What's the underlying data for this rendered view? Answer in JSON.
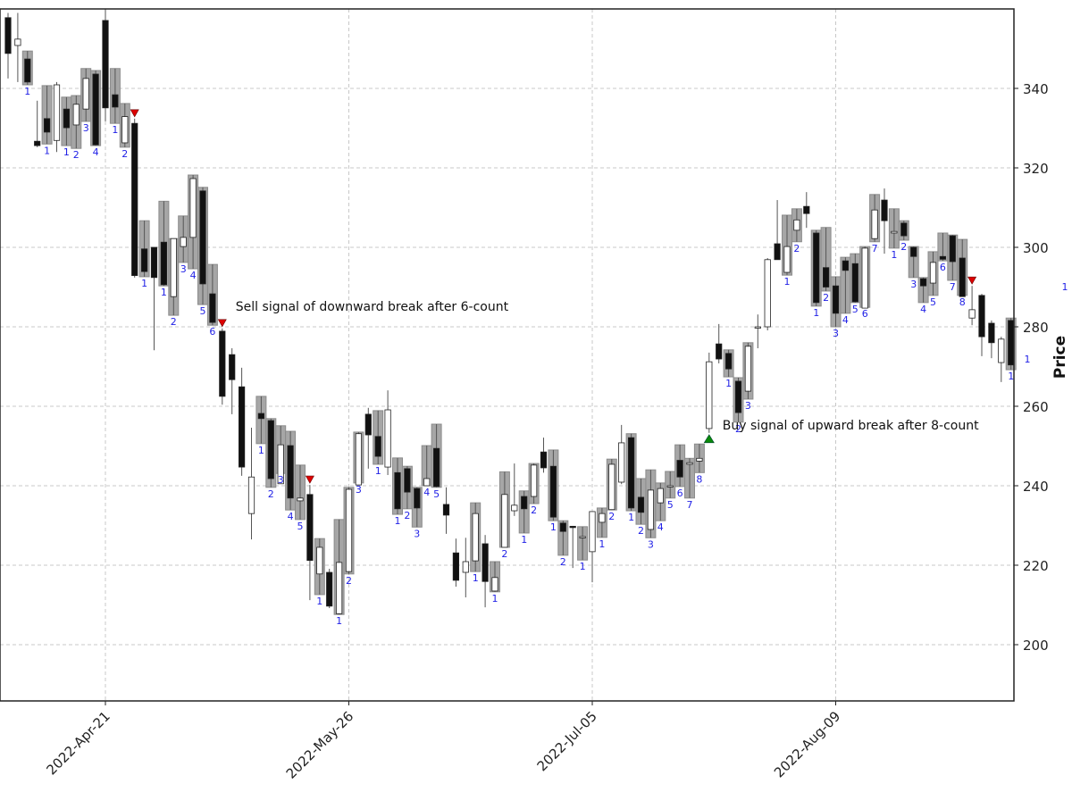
{
  "chart_data": {
    "type": "candlestick",
    "title": "",
    "xlabel": "",
    "ylabel": "Price",
    "ylim": [
      185.8,
      360.0
    ],
    "y_ticks": [
      200,
      220,
      240,
      260,
      280,
      300,
      320,
      340
    ],
    "x_ticks": [
      {
        "index": 10,
        "label": "2022-Apr-21"
      },
      {
        "index": 35,
        "label": "2022-May-26"
      },
      {
        "index": 60,
        "label": "2022-Jul-05"
      },
      {
        "index": 85,
        "label": "2022-Aug-09"
      }
    ],
    "grid": true,
    "colors": {
      "up_body": "#ffffff",
      "down_body": "#111111",
      "wick": "#555555",
      "count_box": "#a6a6a6",
      "count_box_edge": "#8c8c8c",
      "count_label": "#1f1fe6",
      "sell_marker": "#dd0000",
      "buy_marker": "#0a8a0a",
      "grid": "#c8c8c8"
    },
    "candles": [
      {
        "o": 357.8,
        "h": 359.0,
        "l": 342.5,
        "c": 348.8
      },
      {
        "o": 350.8,
        "h": 359.0,
        "l": 341.6,
        "c": 352.4
      },
      {
        "o": 347.4,
        "h": 349.4,
        "l": 340.9,
        "c": 341.6,
        "count": 1
      },
      {
        "o": 326.7,
        "h": 336.9,
        "l": 325.2,
        "c": 325.6
      },
      {
        "o": 332.4,
        "h": 340.7,
        "l": 326.0,
        "c": 329.0,
        "count": 1
      },
      {
        "o": 326.9,
        "h": 341.6,
        "l": 324.0,
        "c": 340.9
      },
      {
        "o": 334.8,
        "h": 337.8,
        "l": 325.6,
        "c": 330.1,
        "count": 1
      },
      {
        "o": 330.8,
        "h": 338.2,
        "l": 324.9,
        "c": 336.0,
        "count": 2
      },
      {
        "o": 334.8,
        "h": 345.0,
        "l": 331.7,
        "c": 342.5,
        "count": 3
      },
      {
        "o": 343.6,
        "h": 344.5,
        "l": 325.6,
        "c": 325.8,
        "count": 4
      },
      {
        "o": 357.1,
        "h": 360.0,
        "l": 331.7,
        "c": 335.1
      },
      {
        "o": 338.4,
        "h": 345.0,
        "l": 331.2,
        "c": 335.3,
        "count": 1
      },
      {
        "o": 326.3,
        "h": 336.2,
        "l": 325.2,
        "c": 332.9,
        "count": 2
      },
      {
        "o": 331.2,
        "h": 332.4,
        "l": 292.4,
        "c": 292.9,
        "sell": true
      },
      {
        "o": 299.6,
        "h": 306.7,
        "l": 292.6,
        "c": 293.9,
        "count": 1
      },
      {
        "o": 300.0,
        "h": 300.0,
        "l": 274.1,
        "c": 292.4
      },
      {
        "o": 301.3,
        "h": 311.6,
        "l": 290.3,
        "c": 290.6,
        "count": 1
      },
      {
        "o": 287.6,
        "h": 302.2,
        "l": 282.9,
        "c": 302.2,
        "count": 2
      },
      {
        "o": 300.2,
        "h": 307.9,
        "l": 296.2,
        "c": 302.5,
        "count": 3
      },
      {
        "o": 302.5,
        "h": 318.2,
        "l": 294.6,
        "c": 317.3,
        "count": 4
      },
      {
        "o": 314.2,
        "h": 315.1,
        "l": 285.6,
        "c": 290.8,
        "count": 5
      },
      {
        "o": 288.3,
        "h": 295.7,
        "l": 280.4,
        "c": 281.1,
        "count": 6
      },
      {
        "o": 278.9,
        "h": 279.6,
        "l": 260.4,
        "c": 262.5,
        "sell": true
      },
      {
        "o": 273.0,
        "h": 274.6,
        "l": 258.0,
        "c": 266.7
      },
      {
        "o": 264.9,
        "h": 269.7,
        "l": 242.5,
        "c": 244.7
      },
      {
        "o": 233.0,
        "h": 254.6,
        "l": 226.5,
        "c": 242.2
      },
      {
        "o": 258.2,
        "h": 262.5,
        "l": 250.6,
        "c": 256.9,
        "count": 1
      },
      {
        "o": 256.4,
        "h": 256.9,
        "l": 239.6,
        "c": 241.8,
        "count": 2
      },
      {
        "o": 240.5,
        "h": 255.1,
        "l": 243.1,
        "c": 250.3,
        "count": 3
      },
      {
        "o": 250.1,
        "h": 253.7,
        "l": 233.9,
        "c": 236.9,
        "count": 4
      },
      {
        "o": 236.2,
        "h": 245.2,
        "l": 231.5,
        "c": 236.9,
        "count": 5
      },
      {
        "o": 237.8,
        "h": 240.2,
        "l": 211.2,
        "c": 221.2,
        "sell": true
      },
      {
        "o": 217.8,
        "h": 226.7,
        "l": 212.6,
        "c": 224.5,
        "count": 1
      },
      {
        "o": 218.2,
        "h": 219.1,
        "l": 209.2,
        "c": 209.7
      },
      {
        "o": 207.8,
        "h": 231.5,
        "l": 207.6,
        "c": 220.7,
        "count": 1
      },
      {
        "o": 218.4,
        "h": 239.6,
        "l": 217.8,
        "c": 239.1,
        "count": 2
      },
      {
        "o": 240.2,
        "h": 253.5,
        "l": 240.7,
        "c": 253.1,
        "count": 3
      },
      {
        "o": 258.0,
        "h": 259.6,
        "l": 244.3,
        "c": 252.8
      },
      {
        "o": 252.4,
        "h": 258.9,
        "l": 245.4,
        "c": 247.4,
        "count": 1
      },
      {
        "o": 244.7,
        "h": 264.0,
        "l": 242.7,
        "c": 259.1
      },
      {
        "o": 243.3,
        "h": 247.0,
        "l": 232.8,
        "c": 234.2,
        "count": 1
      },
      {
        "o": 244.3,
        "h": 244.9,
        "l": 234.2,
        "c": 238.4,
        "count": 2
      },
      {
        "o": 239.3,
        "h": 239.6,
        "l": 229.6,
        "c": 234.4,
        "count": 3
      },
      {
        "o": 240.0,
        "h": 250.1,
        "l": 240.0,
        "c": 241.8,
        "count": 4
      },
      {
        "o": 249.4,
        "h": 255.5,
        "l": 239.6,
        "c": 239.8,
        "count": 5
      },
      {
        "o": 235.3,
        "h": 239.6,
        "l": 227.9,
        "c": 232.6
      },
      {
        "o": 223.1,
        "h": 226.7,
        "l": 214.6,
        "c": 216.2
      },
      {
        "o": 218.2,
        "h": 226.9,
        "l": 211.9,
        "c": 220.9
      },
      {
        "o": 221.1,
        "h": 235.7,
        "l": 218.4,
        "c": 233.0,
        "count": 1
      },
      {
        "o": 225.4,
        "h": 227.6,
        "l": 209.4,
        "c": 215.9
      },
      {
        "o": 213.5,
        "h": 220.9,
        "l": 213.3,
        "c": 216.9,
        "count": 1
      },
      {
        "o": 224.5,
        "h": 243.5,
        "l": 224.5,
        "c": 237.8,
        "count": 2
      },
      {
        "o": 233.7,
        "h": 245.6,
        "l": 232.4,
        "c": 235.1
      },
      {
        "o": 237.3,
        "h": 238.7,
        "l": 228.1,
        "c": 234.2,
        "count": 1
      },
      {
        "o": 237.3,
        "h": 245.6,
        "l": 235.5,
        "c": 245.2,
        "count": 2
      },
      {
        "o": 248.5,
        "h": 252.1,
        "l": 243.3,
        "c": 244.5
      },
      {
        "o": 244.9,
        "h": 249.0,
        "l": 231.2,
        "c": 232.1,
        "count": 1
      },
      {
        "o": 230.6,
        "h": 231.2,
        "l": 222.5,
        "c": 228.5,
        "count": 2
      },
      {
        "o": 229.8,
        "h": 229.9,
        "l": 219.3,
        "c": 229.7
      },
      {
        "o": 227.2,
        "h": 229.7,
        "l": 221.3,
        "c": 227.2,
        "count": 1
      },
      {
        "o": 223.4,
        "h": 233.0,
        "l": 215.7,
        "c": 233.5
      },
      {
        "o": 230.8,
        "h": 234.4,
        "l": 227.0,
        "c": 233.0,
        "count": 1
      },
      {
        "o": 234.0,
        "h": 246.7,
        "l": 233.9,
        "c": 245.4,
        "count": 2
      },
      {
        "o": 240.9,
        "h": 255.3,
        "l": 240.4,
        "c": 250.8
      },
      {
        "o": 252.1,
        "h": 253.1,
        "l": 233.7,
        "c": 234.4,
        "count": 1
      },
      {
        "o": 237.1,
        "h": 241.8,
        "l": 230.3,
        "c": 233.3,
        "count": 2
      },
      {
        "o": 229.0,
        "h": 244.0,
        "l": 226.9,
        "c": 238.9,
        "count": 3
      },
      {
        "o": 235.7,
        "h": 240.7,
        "l": 231.2,
        "c": 239.3,
        "count": 4
      },
      {
        "o": 240.0,
        "h": 243.6,
        "l": 236.9,
        "c": 240.0,
        "count": 5
      },
      {
        "o": 246.4,
        "h": 250.3,
        "l": 239.8,
        "c": 242.2,
        "count": 6
      },
      {
        "o": 245.4,
        "h": 246.9,
        "l": 236.9,
        "c": 245.8,
        "count": 7
      },
      {
        "o": 246.2,
        "h": 250.5,
        "l": 243.3,
        "c": 246.9,
        "count": 8
      },
      {
        "o": 254.4,
        "h": 273.5,
        "l": 253.3,
        "c": 271.2,
        "buy": true
      },
      {
        "o": 275.7,
        "h": 280.7,
        "l": 270.8,
        "c": 271.9
      },
      {
        "o": 273.3,
        "h": 274.2,
        "l": 267.4,
        "c": 269.4,
        "count": 1
      },
      {
        "o": 266.3,
        "h": 267.2,
        "l": 256.0,
        "c": 258.4,
        "count": 2
      },
      {
        "o": 263.8,
        "h": 276.0,
        "l": 261.8,
        "c": 275.1,
        "count": 3
      },
      {
        "o": 279.8,
        "h": 283.1,
        "l": 274.6,
        "c": 280.0
      },
      {
        "o": 280.0,
        "h": 297.3,
        "l": 279.1,
        "c": 296.9
      },
      {
        "o": 300.9,
        "h": 311.9,
        "l": 298.9,
        "c": 296.9
      },
      {
        "o": 293.7,
        "h": 308.1,
        "l": 293.0,
        "c": 300.2,
        "count": 1
      },
      {
        "o": 304.3,
        "h": 309.7,
        "l": 301.4,
        "c": 306.9,
        "count": 2
      },
      {
        "o": 310.3,
        "h": 313.9,
        "l": 304.9,
        "c": 308.5
      },
      {
        "o": 303.6,
        "h": 304.3,
        "l": 285.2,
        "c": 286.1,
        "count": 1
      },
      {
        "o": 294.9,
        "h": 305.0,
        "l": 289.0,
        "c": 290.0,
        "count": 2
      },
      {
        "o": 290.3,
        "h": 292.6,
        "l": 280.0,
        "c": 283.4,
        "count": 3
      },
      {
        "o": 296.6,
        "h": 297.5,
        "l": 283.4,
        "c": 294.2,
        "count": 4
      },
      {
        "o": 295.9,
        "h": 298.4,
        "l": 286.1,
        "c": 286.3,
        "count": 5
      },
      {
        "o": 284.7,
        "h": 300.2,
        "l": 284.9,
        "c": 299.8,
        "count": 6
      },
      {
        "o": 302.2,
        "h": 313.3,
        "l": 301.4,
        "c": 309.4,
        "count": 7
      },
      {
        "o": 311.9,
        "h": 314.8,
        "l": 298.4,
        "c": 306.7
      },
      {
        "o": 303.6,
        "h": 309.7,
        "l": 299.8,
        "c": 304.0,
        "count": 1
      },
      {
        "o": 306.1,
        "h": 306.7,
        "l": 301.8,
        "c": 302.9,
        "count": 2
      },
      {
        "o": 300.0,
        "h": 300.2,
        "l": 292.4,
        "c": 297.7,
        "count": 3
      },
      {
        "o": 292.1,
        "h": 292.4,
        "l": 286.1,
        "c": 290.3,
        "count": 4
      },
      {
        "o": 291.0,
        "h": 298.9,
        "l": 287.9,
        "c": 296.2,
        "count": 5
      },
      {
        "o": 297.7,
        "h": 303.6,
        "l": 296.6,
        "c": 297.0,
        "count": 6
      },
      {
        "o": 302.9,
        "h": 303.1,
        "l": 291.7,
        "c": 296.4,
        "count": 7
      },
      {
        "o": 297.3,
        "h": 302.0,
        "l": 287.9,
        "c": 287.6,
        "count": 8
      },
      {
        "o": 282.2,
        "h": 290.3,
        "l": 280.4,
        "c": 284.3,
        "sell": true
      },
      {
        "o": 287.9,
        "h": 288.3,
        "l": 272.6,
        "c": 277.5
      },
      {
        "o": 280.9,
        "h": 281.6,
        "l": 272.1,
        "c": 276.0
      },
      {
        "o": 271.0,
        "h": 277.5,
        "l": 266.1,
        "c": 276.9
      },
      {
        "o": 281.6,
        "h": 282.2,
        "l": 269.2,
        "c": 270.4,
        "count": 1
      }
    ],
    "annotations": [
      {
        "index": 22,
        "text": "Sell signal of downward break after 6-count",
        "price": 283.1
      },
      {
        "index": 72,
        "text": "Buy signal of upward break after 8-count",
        "price": 253.3
      }
    ],
    "stray_labels": [
      {
        "text": "1",
        "x": 1192,
        "y": 325
      },
      {
        "text": "1",
        "x": 1150,
        "y": 406
      }
    ]
  }
}
